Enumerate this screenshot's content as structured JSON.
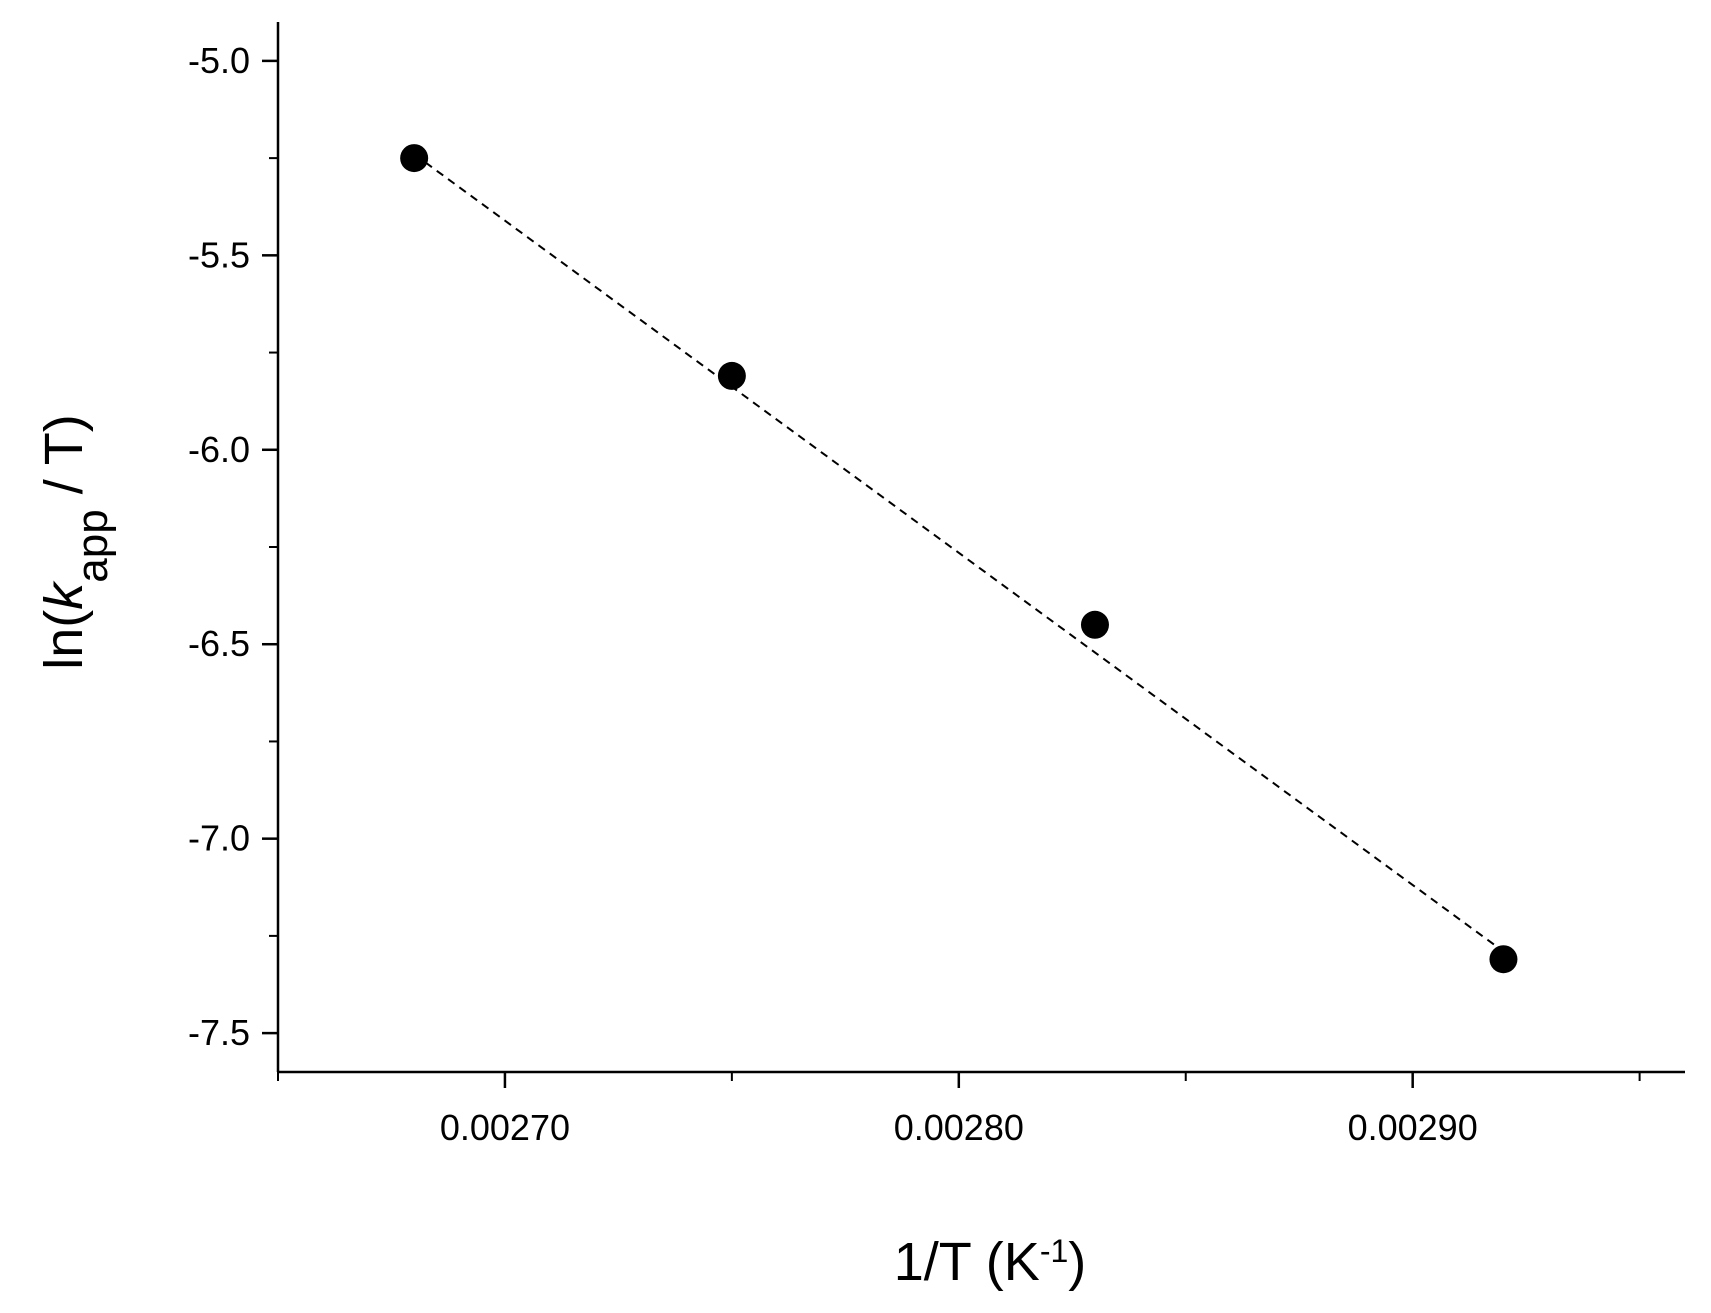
{
  "chart_data": {
    "type": "scatter",
    "title": "",
    "xlabel": {
      "prefix": "1/T (K",
      "superscript": "-1",
      "suffix": ")"
    },
    "ylabel": {
      "prefix": "ln(",
      "italic": "k",
      "subscript": "app",
      "suffix": " / T)"
    },
    "xlim": [
      0.00265,
      0.00296
    ],
    "ylim": [
      -7.6,
      -4.9
    ],
    "x_ticks": [
      0.0027,
      0.0028,
      0.0029
    ],
    "x_tick_labels": [
      "0.00270",
      "0.00280",
      "0.00290"
    ],
    "x_minor_ticks": [
      0.00265,
      0.00275,
      0.00285,
      0.00295
    ],
    "y_ticks": [
      -5.0,
      -5.5,
      -6.0,
      -6.5,
      -7.0,
      -7.5
    ],
    "y_tick_labels": [
      "-5.0",
      "-5.5",
      "-6.0",
      "-6.5",
      "-7.0",
      "-7.5"
    ],
    "y_minor_ticks": [
      -5.25,
      -5.75,
      -6.25,
      -6.75,
      -7.25
    ],
    "grid": false,
    "series": [
      {
        "x": [
          0.00268,
          0.00275,
          0.00283,
          0.00292
        ],
        "y": [
          -5.25,
          -5.81,
          -6.45,
          -7.31
        ],
        "marker": "circle",
        "color": "#000000"
      }
    ],
    "fit_line": {
      "style": "dashed",
      "color": "#000000",
      "x": [
        0.00268,
        0.00292
      ],
      "y": [
        -5.24,
        -7.29
      ]
    }
  }
}
